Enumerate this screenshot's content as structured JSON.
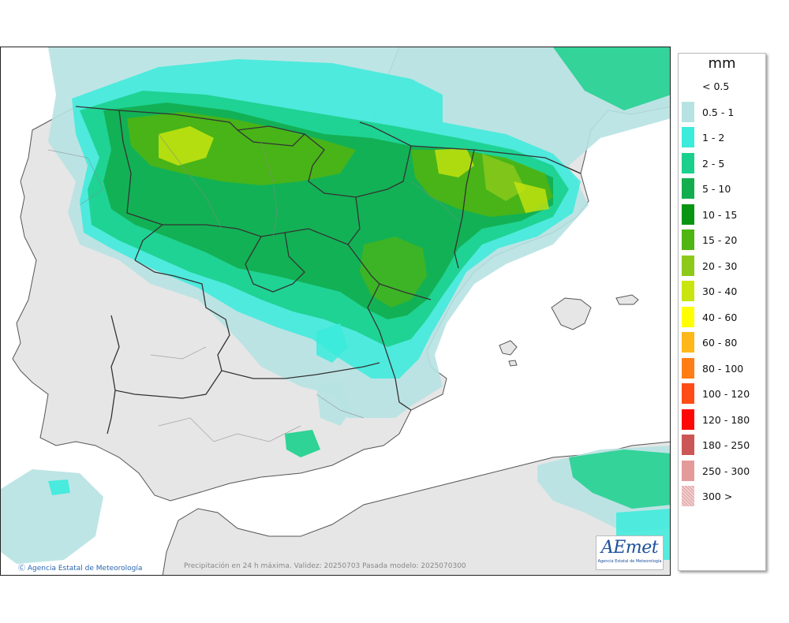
{
  "map": {
    "credit": "Agencia Estatal de Meteorología",
    "caption": "Precipitación en 24 h máxima. Validez: 20250703 Pasada modelo: 2025070300",
    "logo": {
      "brand": "AEmet",
      "subtitle": "Agencia Estatal de Meteorología",
      "brand_color": "#1c4f9c"
    }
  },
  "legend": {
    "unit": "mm",
    "items": [
      {
        "label": "< 0.5",
        "color": "#ffffff"
      },
      {
        "label": "0.5 - 1",
        "color": "#b7e2e2"
      },
      {
        "label": "1 - 2",
        "color": "#3bebdc"
      },
      {
        "label": "2 - 5",
        "color": "#1bd08c"
      },
      {
        "label": "5 - 10",
        "color": "#12ad4e"
      },
      {
        "label": "10 - 15",
        "color": "#0a9414"
      },
      {
        "label": "15 - 20",
        "color": "#4fb512"
      },
      {
        "label": "20 - 30",
        "color": "#8dc91b"
      },
      {
        "label": "30 - 40",
        "color": "#c8e50f"
      },
      {
        "label": "40 - 60",
        "color": "#ffff00"
      },
      {
        "label": "60 - 80",
        "color": "#ffb71a"
      },
      {
        "label": "80 - 100",
        "color": "#ff7d14"
      },
      {
        "label": "100 - 120",
        "color": "#ff4b16"
      },
      {
        "label": "120 - 180",
        "color": "#ff0707"
      },
      {
        "label": "180 - 250",
        "color": "#cc5656"
      },
      {
        "label": "250 - 300",
        "color": "#e49a9a"
      },
      {
        "label": "300 >",
        "color": "#f3cfcf"
      }
    ]
  }
}
